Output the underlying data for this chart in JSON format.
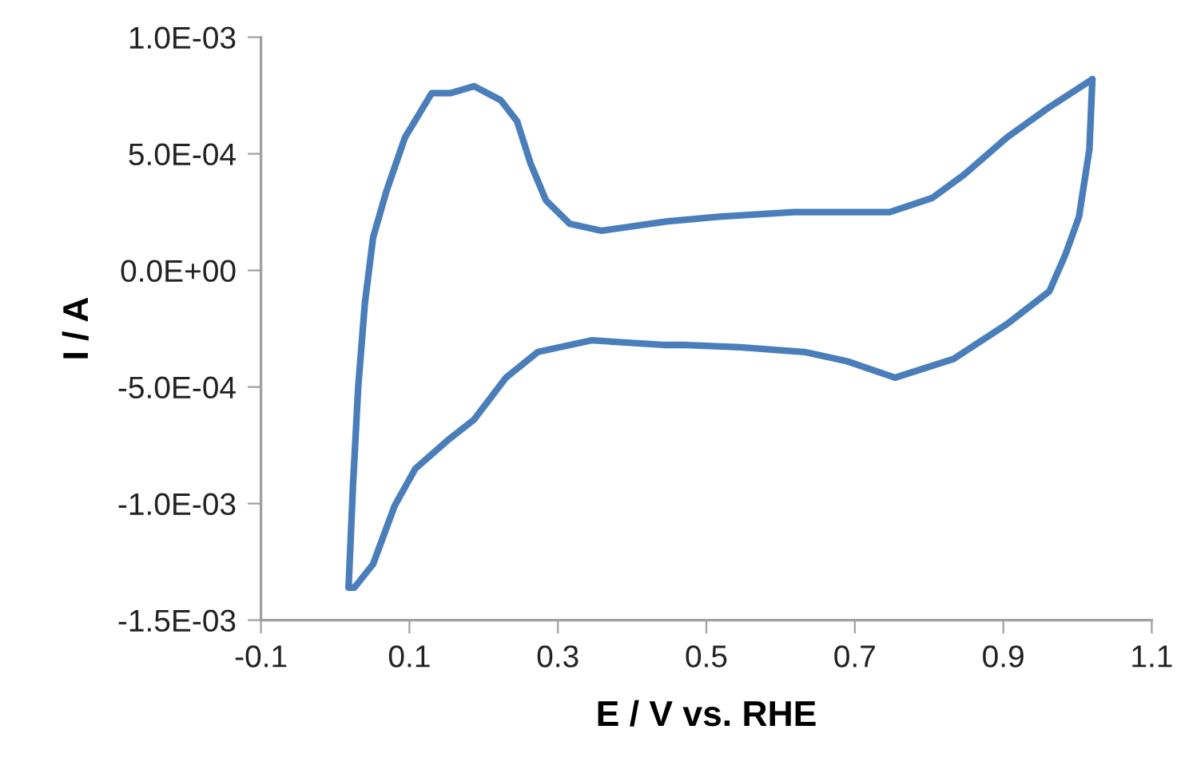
{
  "chart_data": {
    "type": "line",
    "xlabel": "E / V vs. RHE",
    "ylabel": "I / A",
    "series": [
      {
        "color": "#4a7ebb",
        "x": [
          0.018,
          0.024,
          0.031,
          0.04,
          0.051,
          0.069,
          0.094,
          0.13,
          0.155,
          0.187,
          0.223,
          0.245,
          0.263,
          0.284,
          0.316,
          0.359,
          0.446,
          0.517,
          0.618,
          0.747,
          0.804,
          0.847,
          0.905,
          0.962,
          1.02
        ],
        "values": [
          -0.00136,
          -0.00092,
          -0.0005,
          -0.00014,
          0.00014,
          0.00034,
          0.00057,
          0.00076,
          0.00076,
          0.00079,
          0.00073,
          0.00064,
          0.00046,
          0.0003,
          0.0002,
          0.00017,
          0.00021,
          0.00023,
          0.00025,
          0.00025,
          0.00031,
          0.00041,
          0.00057,
          0.0007,
          0.00082
        ]
      },
      {
        "color": "#4a7ebb",
        "x": [
          0.018,
          0.026,
          0.051,
          0.08,
          0.108,
          0.151,
          0.187,
          0.23,
          0.273,
          0.345,
          0.446,
          0.474,
          0.546,
          0.632,
          0.69,
          0.754,
          0.833,
          0.905,
          0.962,
          0.984,
          1.002,
          1.016,
          1.02
        ],
        "values": [
          -0.00136,
          -0.00136,
          -0.00126,
          -0.00101,
          -0.00085,
          -0.00073,
          -0.00064,
          -0.00046,
          -0.00035,
          -0.0003,
          -0.00032,
          -0.00032,
          -0.00033,
          -0.00035,
          -0.00039,
          -0.00046,
          -0.00038,
          -0.00023,
          -9e-05,
          7e-05,
          0.00023,
          0.00052,
          0.00082
        ]
      }
    ],
    "xlim": [
      -0.1,
      1.1
    ],
    "xticks": [
      -0.1,
      0.1,
      0.3,
      0.5,
      0.7,
      0.9,
      1.1
    ],
    "ylim": [
      -0.0015,
      0.001
    ],
    "yticks": [
      {
        "value": -0.0015,
        "label": "-1.5E-03"
      },
      {
        "value": -0.001,
        "label": "-1.0E-03"
      },
      {
        "value": -0.0005,
        "label": "-5.0E-04"
      },
      {
        "value": 0,
        "label": "0.0E+00"
      },
      {
        "value": 0.0005,
        "label": "5.0E-04"
      },
      {
        "value": 0.001,
        "label": "1.0E-03"
      }
    ],
    "grid": false,
    "legend": false,
    "marker": "none",
    "line_style": "solid"
  }
}
